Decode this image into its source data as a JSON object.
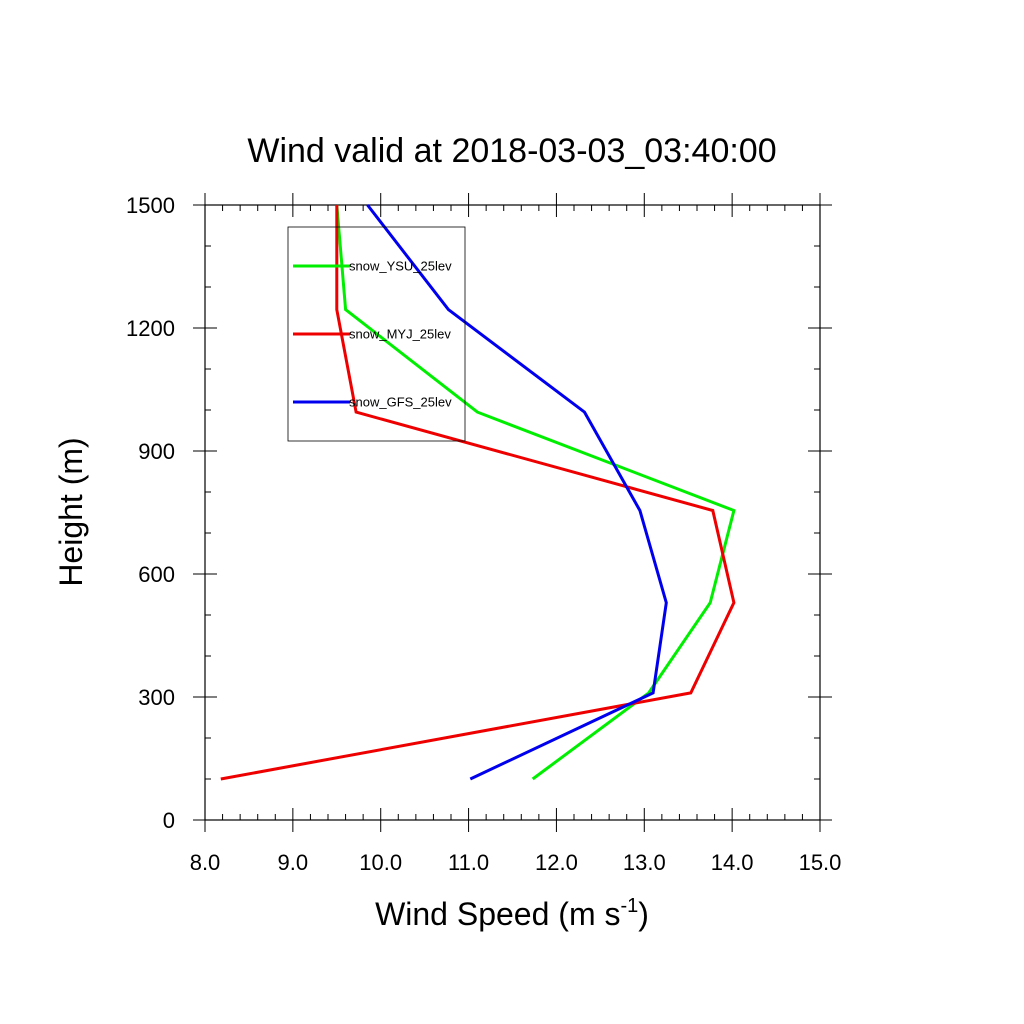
{
  "chart_data": {
    "type": "line",
    "title": "Wind valid at 2018-03-03_03:40:00",
    "xlabel": "Wind Speed (m s",
    "xlabel_superscript": "-1",
    "xlabel_suffix": ")",
    "ylabel": "Height (m)",
    "xlim": [
      8.0,
      15.0
    ],
    "ylim": [
      0,
      1500
    ],
    "xticks": [
      "8.0",
      "9.0",
      "10.0",
      "11.0",
      "12.0",
      "13.0",
      "14.0",
      "15.0"
    ],
    "xtick_values": [
      8,
      9,
      10,
      11,
      12,
      13,
      14,
      15
    ],
    "yticks": [
      "0",
      "300",
      "600",
      "900",
      "1200",
      "1500"
    ],
    "ytick_values": [
      0,
      300,
      600,
      900,
      1200,
      1500
    ],
    "grid": false,
    "legend_position": "top-left",
    "series": [
      {
        "name": "snow_YSU_25lev",
        "color": "#00ee00",
        "points": [
          [
            11.73,
            100
          ],
          [
            13.05,
            310
          ],
          [
            13.75,
            530
          ],
          [
            14.02,
            755
          ],
          [
            11.1,
            995
          ],
          [
            9.6,
            1245
          ],
          [
            9.5,
            1500
          ]
        ]
      },
      {
        "name": "snow_MYJ_25lev",
        "color": "#ee0000",
        "points": [
          [
            8.18,
            100
          ],
          [
            13.53,
            310
          ],
          [
            14.02,
            530
          ],
          [
            13.78,
            755
          ],
          [
            9.72,
            995
          ],
          [
            9.5,
            1245
          ],
          [
            9.5,
            1500
          ]
        ]
      },
      {
        "name": "snow_GFS_25lev",
        "color": "#0000ee",
        "points": [
          [
            11.02,
            100
          ],
          [
            13.1,
            310
          ],
          [
            13.25,
            530
          ],
          [
            12.95,
            755
          ],
          [
            12.32,
            995
          ],
          [
            10.77,
            1245
          ],
          [
            9.85,
            1500
          ]
        ]
      }
    ]
  }
}
